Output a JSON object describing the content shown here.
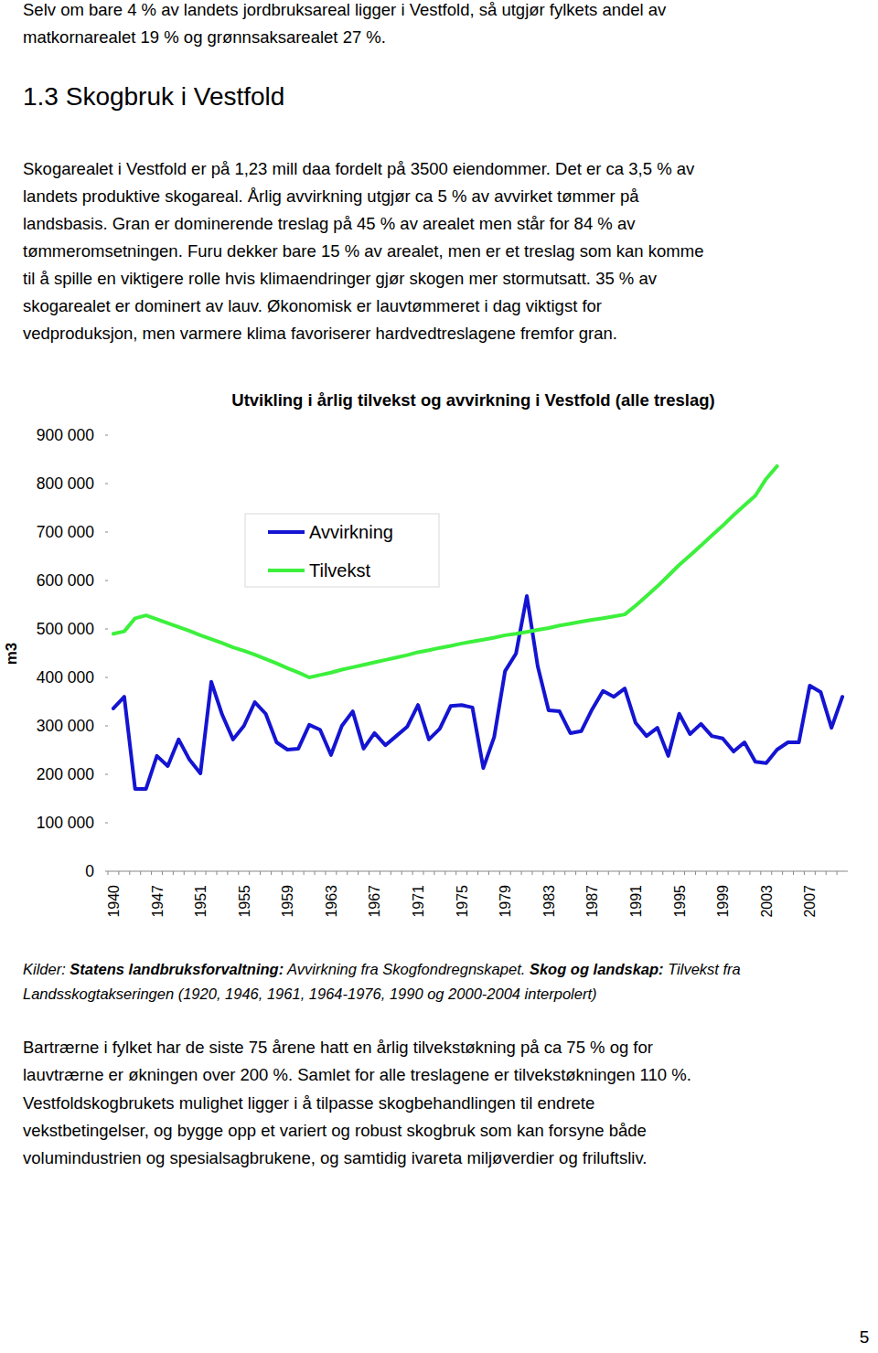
{
  "intro": {
    "lines": [
      "Selv om bare 4 % av landets jordbruksareal ligger i Vestfold, så utgjør fylkets andel av",
      "matkornarealet 19 % og grønnsaksarealet 27 %."
    ]
  },
  "heading": "1.3 Skogbruk i Vestfold",
  "paragraph": {
    "lines": [
      "Skogarealet i Vestfold er på 1,23 mill daa fordelt på 3500 eiendommer. Det er ca 3,5 % av",
      "landets produktive skogareal. Årlig avvirkning utgjør ca 5 % av avvirket tømmer på",
      "landsbasis. Gran er dominerende treslag på 45 % av arealet men står for 84 % av",
      "tømmeromsetningen. Furu dekker bare 15 % av arealet, men er et treslag som kan komme",
      "til å spille en viktigere rolle hvis klimaendringer gjør skogen mer stormutsatt. 35 % av",
      "skogarealet er dominert av lauv. Økonomisk er lauvtømmeret i dag viktigst for",
      "vedproduksjon, men varmere klima favoriserer hardvedtreslagene fremfor gran."
    ]
  },
  "chart_data": {
    "type": "line",
    "title": "Utvikling i årlig tilvekst og avvirkning i Vestfold (alle treslag)",
    "y_label": "m3",
    "categories": [
      "1940",
      null,
      null,
      null,
      "1947",
      null,
      null,
      null,
      "1951",
      null,
      null,
      null,
      "1955",
      null,
      null,
      null,
      "1959",
      null,
      null,
      null,
      "1963",
      null,
      null,
      null,
      "1967",
      null,
      null,
      null,
      "1971",
      null,
      null,
      null,
      "1975",
      null,
      null,
      null,
      "1979",
      null,
      null,
      null,
      "1983",
      null,
      null,
      null,
      "1987",
      null,
      null,
      null,
      "1991",
      null,
      null,
      null,
      "1995",
      null,
      null,
      null,
      "1999",
      null,
      null,
      null,
      "2003",
      null,
      null,
      null,
      "2007",
      null,
      null,
      null
    ],
    "series": [
      {
        "name": "Avvirkning",
        "color": "#1414d2",
        "values": [
          336000,
          360000,
          170000,
          170000,
          238000,
          217000,
          272000,
          230000,
          202000,
          391000,
          323000,
          272000,
          300000,
          349000,
          325000,
          266000,
          251000,
          253000,
          302000,
          292000,
          240000,
          300000,
          330000,
          253000,
          285000,
          260000,
          279000,
          298000,
          343000,
          272000,
          294000,
          341000,
          343000,
          338000,
          213000,
          277000,
          413000,
          449000,
          568000,
          423000,
          332000,
          330000,
          285000,
          289000,
          334000,
          372000,
          360000,
          377000,
          306000,
          279000,
          296000,
          238000,
          325000,
          283000,
          304000,
          279000,
          274000,
          247000,
          266000,
          226000,
          223000,
          251000,
          266000,
          266000,
          383000,
          370000,
          296000,
          360000
        ]
      },
      {
        "name": "Tilvekst",
        "color": "#3cf03c",
        "values": [
          490000,
          495000,
          522000,
          528000,
          520000,
          512000,
          504000,
          496000,
          487000,
          479000,
          471000,
          462000,
          455000,
          447000,
          438000,
          429000,
          419000,
          410000,
          400000,
          405000,
          410000,
          416000,
          421000,
          426000,
          431000,
          436000,
          441000,
          446000,
          452000,
          456000,
          461000,
          465000,
          470000,
          474000,
          478000,
          482000,
          487000,
          490000,
          494000,
          498000,
          502000,
          507000,
          511000,
          515000,
          519000,
          522000,
          526000,
          530000,
          548000,
          568000,
          588000,
          610000,
          632000,
          652000,
          672000,
          693000,
          713000,
          735000,
          755000,
          775000,
          810000,
          836000,
          null,
          null,
          null,
          null,
          null,
          null
        ]
      }
    ],
    "ylim": [
      0,
      900000
    ],
    "yticks": [
      0,
      {
        "value": 100000,
        "label": "100 000"
      },
      {
        "value": 200000,
        "label": "200 000"
      },
      {
        "value": 300000,
        "label": "300 000"
      },
      {
        "value": 400000,
        "label": "400 000"
      },
      {
        "value": 500000,
        "label": "500 000"
      },
      {
        "value": 600000,
        "label": "600 000"
      },
      {
        "value": 700000,
        "label": "700 000"
      },
      {
        "value": 800000,
        "label": "800 000"
      },
      {
        "value": 900000,
        "label": "900 000"
      }
    ],
    "grid": false,
    "legend": "top-left"
  },
  "source": {
    "lines": [
      [
        {
          "text": "Kilder: ",
          "bold": false
        },
        {
          "text": "Statens landbruksforvaltning:",
          "bold": true
        },
        {
          "text": " Avvirkning fra Skogfondregnskapet. ",
          "bold": false
        },
        {
          "text": "Skog og landskap:",
          "bold": true
        },
        {
          "text": " Tilvekst fra",
          "bold": false
        }
      ],
      [
        {
          "text": "Landsskogtakseringen (1920, 1946, 1961, 1964-1976, 1990 og 2000-2004 interpolert)",
          "bold": false
        }
      ]
    ]
  },
  "closing": {
    "lines": [
      "Bartrærne i fylket har de siste 75 årene hatt en årlig tilvekstøkning på ca 75 % og for",
      "lauvtrærne er økningen over 200 %. Samlet for alle treslagene er tilvekstøkningen 110 %.",
      "Vestfoldskogbrukets mulighet ligger i å tilpasse skogbehandlingen til endrete",
      "vekstbetingelser, og bygge opp et variert og robust skogbruk som kan forsyne både",
      "volumindustrien og spesialsagbrukene, og samtidig ivareta miljøverdier og friluftsliv."
    ]
  },
  "page_number": "5"
}
